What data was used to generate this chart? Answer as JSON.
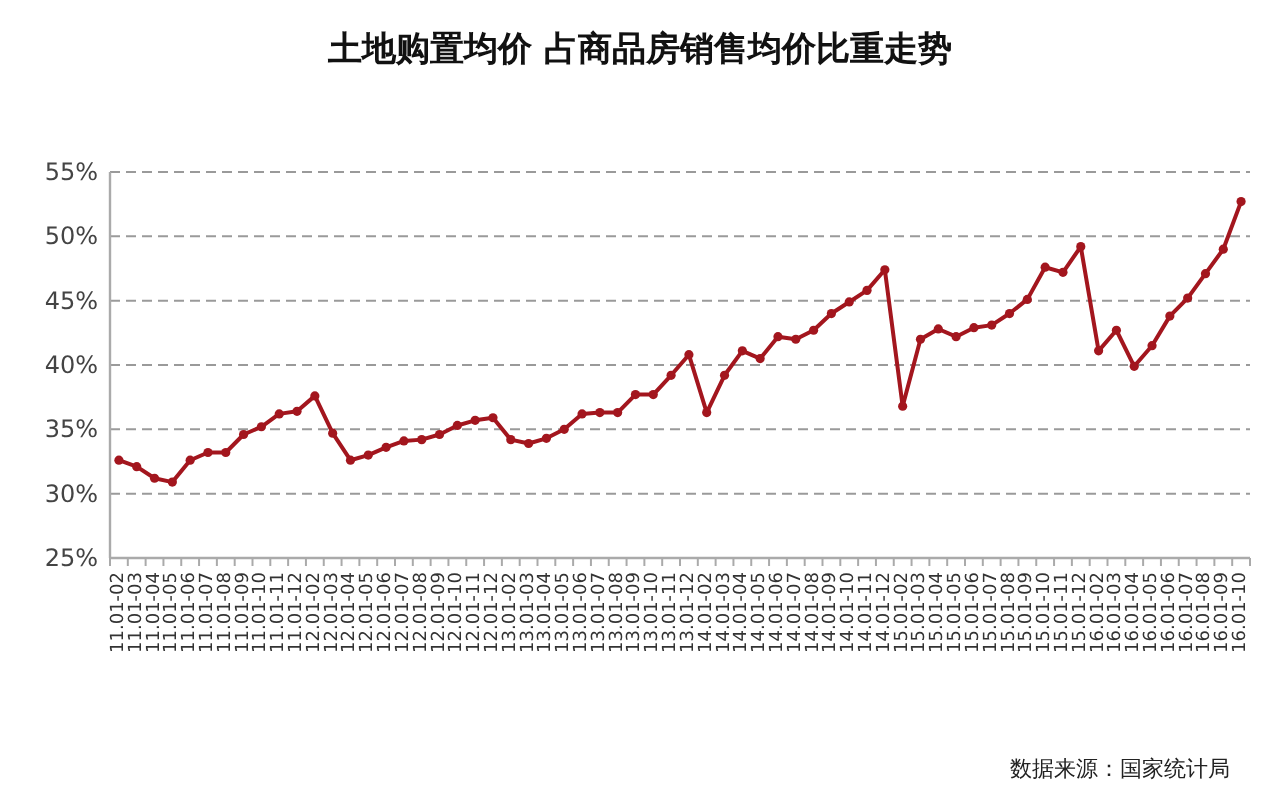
{
  "chart_data": {
    "type": "line",
    "title": "土地购置均价 占商品房销售均价比重走势",
    "categories": [
      "11.01-02",
      "11.01-03",
      "11.01-04",
      "11.01-05",
      "11.01-06",
      "11.01-07",
      "11.01-08",
      "11.01-09",
      "11.01-10",
      "11.01-11",
      "11.01-12",
      "12.01-02",
      "12.01-03",
      "12.01-04",
      "12.01-05",
      "12.01-06",
      "12.01-07",
      "12.01-08",
      "12.01-09",
      "12.01-10",
      "12.01-11",
      "12.01-12",
      "13.01-02",
      "13.01-03",
      "13.01-04",
      "13.01-05",
      "13.01-06",
      "13.01-07",
      "13.01-08",
      "13.01-09",
      "13.01-10",
      "13.01-11",
      "13.01-12",
      "14.01-02",
      "14.01-03",
      "14.01-04",
      "14.01-05",
      "14.01-06",
      "14.01-07",
      "14.01-08",
      "14.01-09",
      "14.01-10",
      "14.01-11",
      "14.01-12",
      "15.01-02",
      "15.01-03",
      "15.01-04",
      "15.01-05",
      "15.01-06",
      "15.01-07",
      "15.01-08",
      "15.01-09",
      "15.01-10",
      "15.01-11",
      "15.01-12",
      "16.01-02",
      "16.01-03",
      "16.01-04",
      "16.01-05",
      "16.01-06",
      "16.01-07",
      "16.01-08",
      "16.01-09",
      "16.01-10"
    ],
    "series": [
      {
        "color": "#a3161e",
        "values": [
          32.6,
          32.1,
          31.2,
          30.9,
          32.6,
          33.2,
          33.2,
          34.6,
          35.2,
          36.2,
          36.4,
          37.6,
          34.7,
          32.6,
          33.0,
          33.6,
          34.1,
          34.2,
          34.6,
          35.3,
          35.7,
          35.9,
          34.2,
          33.9,
          34.3,
          35.0,
          36.2,
          36.3,
          36.3,
          37.7,
          37.7,
          39.2,
          40.8,
          36.3,
          39.2,
          41.1,
          40.5,
          42.2,
          42.0,
          42.7,
          44.0,
          44.9,
          45.8,
          47.4,
          36.8,
          42.0,
          42.8,
          42.2,
          42.9,
          43.1,
          44.0,
          45.1,
          47.6,
          47.2,
          49.2,
          41.1,
          42.7,
          39.9,
          41.5,
          43.8,
          45.2,
          47.1,
          49.0,
          52.7
        ]
      }
    ],
    "ylim": [
      25,
      55
    ],
    "yticks": [
      {
        "value": 25,
        "label": "25%"
      },
      {
        "value": 30,
        "label": "30%"
      },
      {
        "value": 35,
        "label": "35%"
      },
      {
        "value": 40,
        "label": "40%"
      },
      {
        "value": 45,
        "label": "45%"
      },
      {
        "value": 50,
        "label": "50%"
      },
      {
        "value": 55,
        "label": "55%"
      }
    ],
    "grid": "y",
    "marker": "circle",
    "line_style": "solid",
    "annotations": [
      "数据来源：国家统计局"
    ]
  }
}
